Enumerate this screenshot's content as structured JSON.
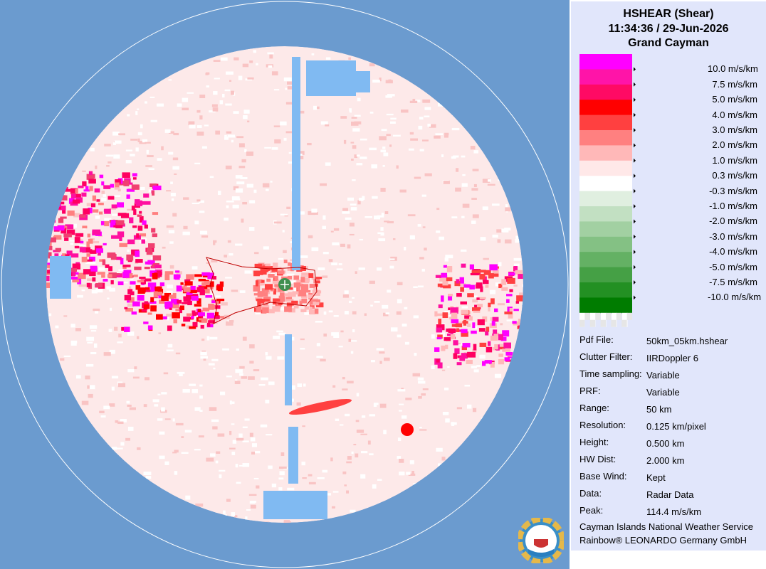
{
  "header": {
    "title": "HSHEAR (Shear)",
    "time": "11:34:36 / 29-Jun-2026",
    "location": "Grand Cayman"
  },
  "legend": {
    "colors": [
      "#ff00ff",
      "#ff14a8",
      "#ff0a64",
      "#ff0000",
      "#ff4040",
      "#ff8080",
      "#ffb8b8",
      "#ffe8e8",
      "#ffffff",
      "#e0efe0",
      "#c2e0c2",
      "#a2d0a2",
      "#84c184",
      "#64b164",
      "#45a045",
      "#239023",
      "#007c00"
    ],
    "labels": [
      "10.0 m/s/km",
      "7.5 m/s/km",
      "5.0 m/s/km",
      "4.0 m/s/km",
      "3.0 m/s/km",
      "2.0 m/s/km",
      "1.0 m/s/km",
      "0.3 m/s/km",
      "-0.3 m/s/km",
      "-1.0 m/s/km",
      "-2.0 m/s/km",
      "-3.0 m/s/km",
      "-4.0 m/s/km",
      "-5.0 m/s/km",
      "-7.5 m/s/km",
      "-10.0 m/s/km"
    ]
  },
  "info": [
    {
      "label": "Pdf File:",
      "value": "50km_05km.hshear"
    },
    {
      "label": "Clutter Filter:",
      "value": "IIRDoppler 6"
    },
    {
      "label": "Time sampling:",
      "value": "Variable"
    },
    {
      "label": "PRF:",
      "value": "Variable"
    },
    {
      "label": "Range:",
      "value": "50 km"
    },
    {
      "label": "Resolution:",
      "value": "0.125 km/pixel"
    },
    {
      "label": "Height:",
      "value": "0.500 km"
    },
    {
      "label": "HW Dist:",
      "value": "2.000 km"
    },
    {
      "label": "Base Wind:",
      "value": "Kept"
    },
    {
      "label": "Data:",
      "value": "Radar Data"
    },
    {
      "label": "Peak:",
      "value": "114.4 m/s/km"
    }
  ],
  "footer": [
    "Cayman Islands National Weather Service",
    "Rainbow® LEONARDO Germany GmbH"
  ]
}
